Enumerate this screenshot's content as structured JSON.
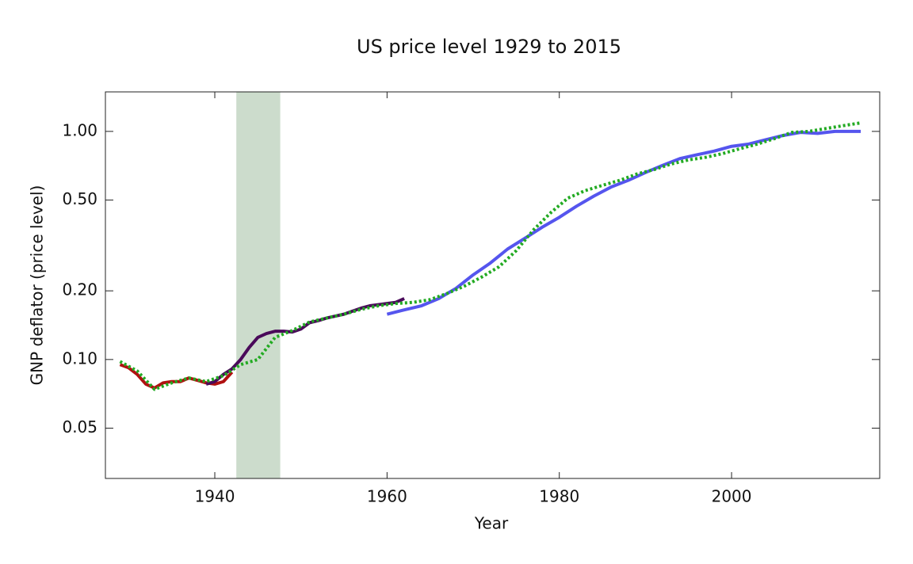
{
  "chart_data": {
    "type": "line",
    "title": "US price level 1929 to 2015",
    "x_label": "Year",
    "y_label": "GNP deflator (price level)",
    "log_y": true,
    "grid": false,
    "xlim": [
      1927.3,
      2017.2
    ],
    "xticks": [
      1940,
      1960,
      1980,
      2000
    ],
    "ylim": [
      0.0301,
      1.49
    ],
    "yticks": [
      0.05,
      {
        "value": 0.1,
        "label": "0.10"
      },
      {
        "value": 0.2,
        "label": "0.20"
      },
      {
        "value": 0.5,
        "label": "0.50"
      },
      {
        "value": 1,
        "label": "1.00"
      }
    ],
    "shaded_region": {
      "x": [
        1942.5,
        1947.6
      ],
      "color": "#ccdccc"
    },
    "series": [
      {
        "color": "#b01010",
        "dash": false,
        "x": [
          1929,
          1930,
          1931,
          1932,
          1933,
          1934,
          1935,
          1936,
          1937,
          1938,
          1939,
          1940,
          1941,
          1942
        ],
        "values": [
          0.095,
          0.092,
          0.086,
          0.078,
          0.075,
          0.079,
          0.08,
          0.08,
          0.083,
          0.081,
          0.079,
          0.078,
          0.08,
          0.088
        ]
      },
      {
        "color": "#4a0a5a",
        "dash": false,
        "x": [
          1939,
          1940,
          1941,
          1942,
          1943,
          1944,
          1945,
          1946,
          1947,
          1948,
          1949,
          1950,
          1951,
          1952,
          1953,
          1954,
          1955,
          1956,
          1957,
          1958,
          1959,
          1960,
          1961,
          1962
        ],
        "values": [
          0.078,
          0.08,
          0.086,
          0.091,
          0.1,
          0.113,
          0.125,
          0.13,
          0.133,
          0.133,
          0.132,
          0.136,
          0.145,
          0.148,
          0.152,
          0.155,
          0.158,
          0.163,
          0.168,
          0.172,
          0.174,
          0.176,
          0.178,
          0.185
        ]
      },
      {
        "color": "#5555ee",
        "dash": false,
        "x": [
          1960,
          1962,
          1964,
          1966,
          1968,
          1970,
          1972,
          1974,
          1976,
          1978,
          1980,
          1982,
          1984,
          1986,
          1988,
          1990,
          1992,
          1994,
          1996,
          1998,
          2000,
          2002,
          2004,
          2006,
          2008,
          2010,
          2012,
          2015
        ],
        "values": [
          0.158,
          0.165,
          0.172,
          0.185,
          0.205,
          0.235,
          0.265,
          0.305,
          0.34,
          0.38,
          0.42,
          0.47,
          0.52,
          0.57,
          0.61,
          0.66,
          0.71,
          0.76,
          0.79,
          0.82,
          0.86,
          0.88,
          0.92,
          0.96,
          0.99,
          0.98,
          1.0,
          1.0
        ]
      },
      {
        "color": "#22aa22",
        "dash": true,
        "x": [
          1929,
          1931,
          1933,
          1935,
          1937,
          1939,
          1941,
          1943,
          1945,
          1947,
          1949,
          1951,
          1953,
          1955,
          1957,
          1959,
          1961,
          1963,
          1965,
          1967,
          1969,
          1971,
          1973,
          1975,
          1977,
          1979,
          1981,
          1983,
          1985,
          1987,
          1989,
          1991,
          1993,
          1995,
          1997,
          1999,
          2001,
          2003,
          2005,
          2007,
          2009,
          2011,
          2013,
          2015
        ],
        "values": [
          0.098,
          0.089,
          0.074,
          0.079,
          0.083,
          0.08,
          0.085,
          0.095,
          0.1,
          0.125,
          0.134,
          0.146,
          0.152,
          0.158,
          0.166,
          0.172,
          0.176,
          0.178,
          0.183,
          0.195,
          0.21,
          0.23,
          0.255,
          0.3,
          0.37,
          0.44,
          0.51,
          0.55,
          0.58,
          0.61,
          0.65,
          0.68,
          0.72,
          0.75,
          0.77,
          0.8,
          0.84,
          0.88,
          0.93,
          0.99,
          1.0,
          1.03,
          1.06,
          1.09
        ]
      }
    ]
  }
}
